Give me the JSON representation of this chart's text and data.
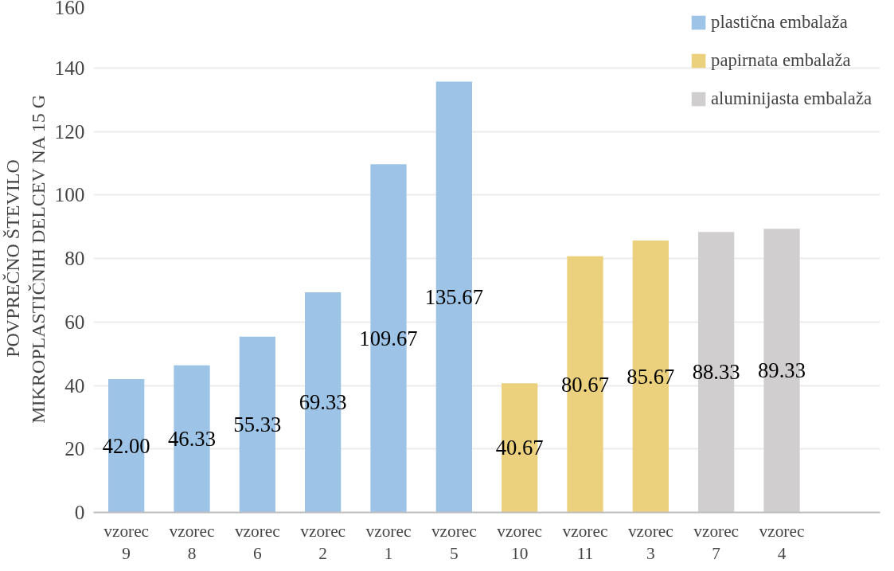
{
  "chart_data": {
    "type": "bar",
    "ylabel": "POVPREČNO ŠTEVILO MIKROPLASTIČNIH DELCEV NA 15 G",
    "categories": [
      "vzorec 9",
      "vzorec 8",
      "vzorec 6",
      "vzorec 2",
      "vzorec 1",
      "vzorec 5",
      "vzorec 10",
      "vzorec 11",
      "vzorec 3",
      "vzorec 7",
      "vzorec 4",
      null
    ],
    "series": [
      {
        "name": "plastična embalaža",
        "color": "#9dc3e6",
        "values": [
          42.0,
          46.33,
          55.33,
          69.33,
          109.67,
          135.67,
          null,
          null,
          null,
          null,
          null,
          null
        ],
        "value_labels": [
          "42.00",
          "46.33",
          "55.33",
          "69.33",
          "109.67",
          "135.67",
          null,
          null,
          null,
          null,
          null,
          null
        ]
      },
      {
        "name": "papirnata embalaža",
        "color": "#ebd07d",
        "values": [
          null,
          null,
          null,
          null,
          null,
          null,
          40.67,
          80.67,
          85.67,
          null,
          null,
          null
        ],
        "value_labels": [
          null,
          null,
          null,
          null,
          null,
          null,
          "40.67",
          "80.67",
          "85.67",
          null,
          null,
          null
        ]
      },
      {
        "name": "aluminijasta embalaža",
        "color": "#d0cece",
        "values": [
          null,
          null,
          null,
          null,
          null,
          null,
          null,
          null,
          null,
          88.33,
          89.33,
          null
        ],
        "value_labels": [
          null,
          null,
          null,
          null,
          null,
          null,
          null,
          null,
          null,
          "88.33",
          "89.33",
          null
        ]
      }
    ],
    "ylim": [
      0,
      160
    ],
    "yticks": [
      0,
      20,
      40,
      60,
      80,
      100,
      120,
      140,
      160
    ],
    "grid": "y",
    "legend": "top right"
  }
}
